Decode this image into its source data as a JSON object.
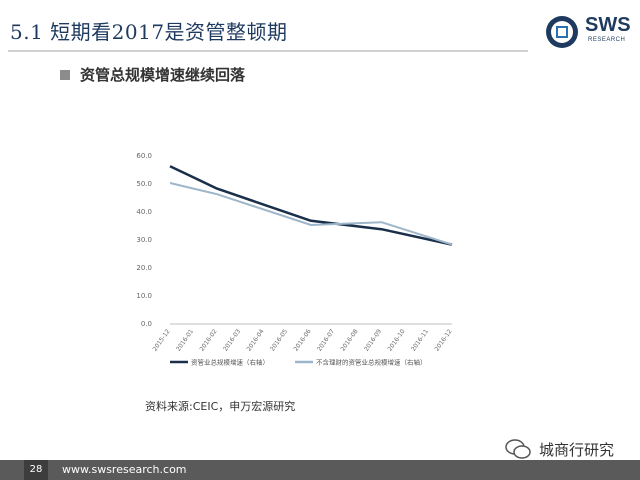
{
  "header": {
    "title": "5.1 短期看2017是资管整顿期",
    "logo_text": "SWS",
    "logo_sub": "RESEARCH"
  },
  "subtitle": "资管总规模增速继续回落",
  "source": "资料来源:CEIC，申万宏源研究",
  "watermark": "城商行研究",
  "footer": {
    "page": "28",
    "url": "www.swsresearch.com"
  },
  "colors": {
    "series1": "#1a2f4a",
    "series2": "#9eb6c9",
    "title": "#1f3a5f"
  },
  "chart_data": {
    "type": "line",
    "categories": [
      "2015-12",
      "2016-01",
      "2016-02",
      "2016-03",
      "2016-04",
      "2016-05",
      "2016-06",
      "2016-07",
      "2016-08",
      "2016-09",
      "2016-10",
      "2016-11",
      "2016-12"
    ],
    "ylim": [
      0,
      60
    ],
    "yticks": [
      "0.0",
      "10.0",
      "20.0",
      "30.0",
      "40.0",
      "50.0",
      "60.0"
    ],
    "series": [
      {
        "name": "资管业总规模增速（右轴）",
        "values": [
          56.0,
          52.0,
          48.0,
          null,
          null,
          null,
          36.5,
          null,
          null,
          33.5,
          null,
          null,
          28.0
        ]
      },
      {
        "name": "不含理财的资管业总规模增速（右轴）",
        "values": [
          50.0,
          48.0,
          46.0,
          null,
          null,
          null,
          35.0,
          null,
          null,
          36.0,
          null,
          null,
          28.0
        ]
      }
    ],
    "legend_position": "bottom",
    "grid": false
  }
}
